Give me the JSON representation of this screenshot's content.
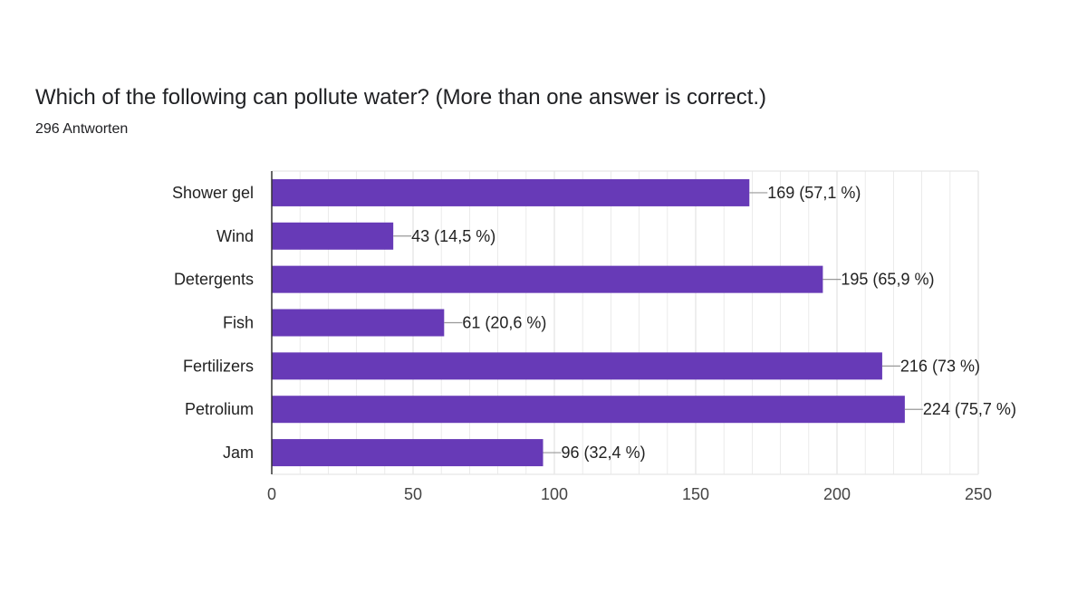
{
  "question": "Which of the following can pollute water? (More than one answer is correct.)",
  "response_count": "296 Antworten",
  "colors": {
    "bar": "#673AB7",
    "grid": "#E6E6E6",
    "axis": "#333333",
    "leader": "#999999"
  },
  "chart_data": {
    "type": "bar",
    "orientation": "horizontal",
    "title": "",
    "xlabel": "",
    "ylabel": "",
    "categories": [
      "Shower gel",
      "Wind",
      "Detergents",
      "Fish",
      "Fertilizers",
      "Petrolium",
      "Jam"
    ],
    "values": [
      169,
      43,
      195,
      61,
      216,
      224,
      96
    ],
    "data_labels": [
      "169 (57,1 %)",
      "43 (14,5 %)",
      "195 (65,9 %)",
      "61 (20,6 %)",
      "216 (73 %)",
      "224 (75,7 %)",
      "96 (32,4 %)"
    ],
    "xlim": [
      0,
      250
    ],
    "xticks": [
      0,
      50,
      100,
      150,
      200,
      250
    ],
    "grid": true,
    "legend": false
  }
}
